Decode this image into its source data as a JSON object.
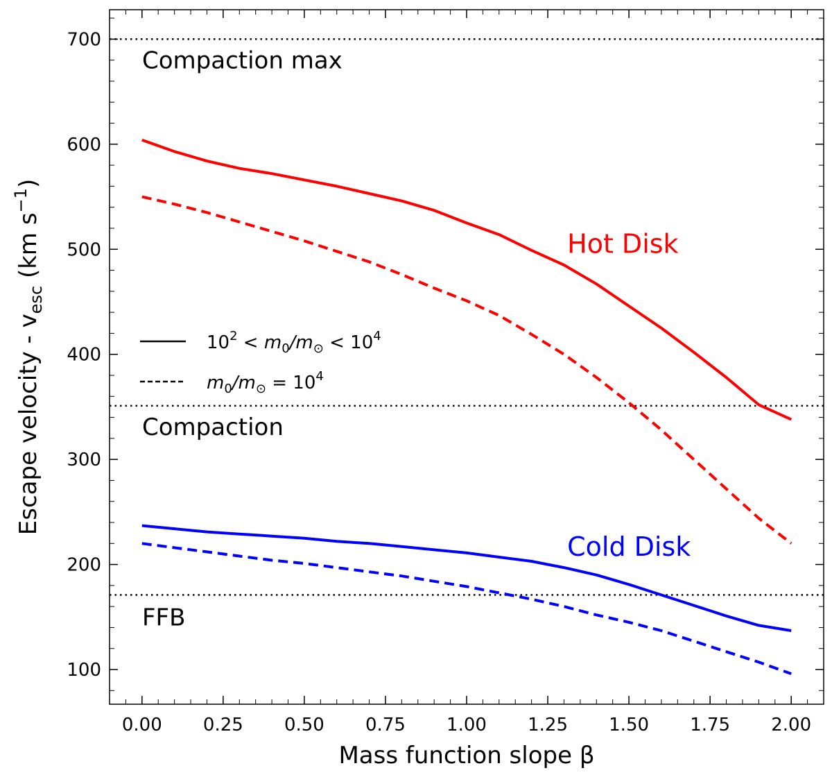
{
  "chart_data": {
    "type": "line",
    "xlabel": "Mass function slope β",
    "ylabel": "Escape velocity - v",
    "ylabel_sub": "esc",
    "ylabel_unit": " (km s",
    "ylabel_sup": "−1",
    "ylabel_close": ")",
    "xlim": [
      -0.1,
      2.1
    ],
    "ylim": [
      67,
      728
    ],
    "xticks": [
      0.0,
      0.25,
      0.5,
      0.75,
      1.0,
      1.25,
      1.5,
      1.75,
      2.0
    ],
    "xtick_labels": [
      "0.00",
      "0.25",
      "0.50",
      "0.75",
      "1.00",
      "1.25",
      "1.50",
      "1.75",
      "2.00"
    ],
    "yticks": [
      100,
      200,
      300,
      400,
      500,
      600,
      700
    ],
    "ytick_labels": [
      "100",
      "200",
      "300",
      "400",
      "500",
      "600",
      "700"
    ],
    "grid": false,
    "series": [
      {
        "group": "Hot Disk",
        "style": "solid",
        "color": "#ff0000",
        "x": [
          0.0,
          0.1,
          0.2,
          0.3,
          0.4,
          0.5,
          0.6,
          0.7,
          0.8,
          0.9,
          1.0,
          1.1,
          1.2,
          1.3,
          1.4,
          1.5,
          1.6,
          1.7,
          1.8,
          1.9,
          2.0
        ],
        "y": [
          604,
          593,
          584,
          577,
          572,
          566,
          560,
          553,
          546,
          537,
          525,
          514,
          499,
          485,
          467,
          446,
          425,
          402,
          378,
          352,
          338
        ]
      },
      {
        "group": "Hot Disk",
        "style": "dashed",
        "color": "#ff0000",
        "x": [
          0.0,
          0.1,
          0.2,
          0.3,
          0.4,
          0.5,
          0.6,
          0.7,
          0.8,
          0.9,
          1.0,
          1.1,
          1.2,
          1.3,
          1.4,
          1.5,
          1.6,
          1.7,
          1.8,
          1.9,
          2.0
        ],
        "y": [
          550,
          543,
          535,
          526,
          517,
          508,
          498,
          488,
          476,
          463,
          451,
          437,
          419,
          400,
          378,
          354,
          328,
          300,
          272,
          244,
          220
        ]
      },
      {
        "group": "Cold Disk",
        "style": "solid",
        "color": "#0000ff",
        "x": [
          0.0,
          0.1,
          0.2,
          0.3,
          0.4,
          0.5,
          0.6,
          0.7,
          0.8,
          0.9,
          1.0,
          1.1,
          1.2,
          1.3,
          1.4,
          1.5,
          1.6,
          1.7,
          1.8,
          1.9,
          2.0
        ],
        "y": [
          237,
          234,
          231,
          229,
          227,
          225,
          222,
          220,
          217,
          214,
          211,
          207,
          203,
          197,
          190,
          181,
          171,
          161,
          151,
          142,
          137
        ]
      },
      {
        "group": "Cold Disk",
        "style": "dashed",
        "color": "#0000ff",
        "x": [
          0.0,
          0.1,
          0.2,
          0.3,
          0.4,
          0.5,
          0.6,
          0.7,
          0.8,
          0.9,
          1.0,
          1.1,
          1.2,
          1.3,
          1.4,
          1.5,
          1.6,
          1.7,
          1.8,
          1.9,
          2.0
        ],
        "y": [
          220,
          216,
          212,
          208,
          204,
          201,
          197,
          193,
          189,
          184,
          179,
          173,
          167,
          160,
          152,
          145,
          137,
          127,
          117,
          107,
          96
        ]
      }
    ],
    "hlines": [
      {
        "y": 700,
        "label": "Compaction max"
      },
      {
        "y": 351,
        "label": "Compaction"
      },
      {
        "y": 171,
        "label": "FFB"
      }
    ],
    "annotations": [
      {
        "text": "Hot Disk",
        "color": "#ff0000",
        "x": 1.31,
        "y": 505
      },
      {
        "text": "Cold Disk",
        "color": "#0000ff",
        "x": 1.31,
        "y": 217
      }
    ],
    "legend": {
      "placement": "center-left",
      "entries": [
        {
          "style": "solid",
          "base": "10",
          "base_sup": "2",
          "mid": " < m",
          "mid_sub": "0",
          "rest": "/m",
          "rest_sub": "⊙",
          "tail": " < 10",
          "tail_sup": "4"
        },
        {
          "style": "dashed",
          "base": "",
          "base_sup": "",
          "mid": "m",
          "mid_sub": "0",
          "rest": "/m",
          "rest_sub": "⊙",
          "tail": " = 10",
          "tail_sup": "4"
        }
      ]
    }
  }
}
